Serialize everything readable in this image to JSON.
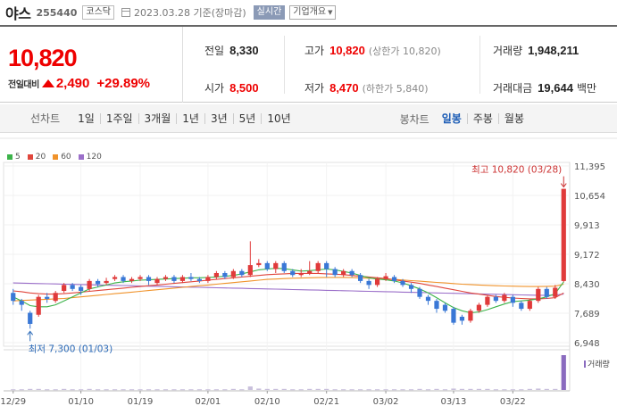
{
  "stock": {
    "name": "야스",
    "code": "255440",
    "market": "코스닥",
    "date_text": "2023.03.28 기준(장마감)",
    "realtime_label": "실시간",
    "info_label": "기업개요"
  },
  "price": {
    "current": "10,820",
    "change_label": "전일대비",
    "change": "2,490",
    "change_pct": "+29.89%"
  },
  "stats": {
    "prev_label": "전일",
    "prev": "8,330",
    "high_label": "고가",
    "high": "10,820",
    "high_note": "(상한가 10,820)",
    "volume_label": "거래량",
    "volume": "1,948,211",
    "open_label": "시가",
    "open": "8,500",
    "low_label": "저가",
    "low": "8,470",
    "low_note": "(하한가 5,840)",
    "amount_label": "거래대금",
    "amount": "19,644",
    "amount_unit": "백만"
  },
  "toolbar": {
    "line_chart_label": "선차트",
    "periods": [
      "1일",
      "1주일",
      "3개월",
      "1년",
      "3년",
      "5년",
      "10년"
    ],
    "candle_label": "봉차트",
    "candle_types": [
      "일봉",
      "주봉",
      "월봉"
    ],
    "active_candle": "일봉"
  },
  "legend": [
    {
      "label": "5",
      "color": "#3cb34a"
    },
    {
      "label": "20",
      "color": "#e0463c"
    },
    {
      "label": "60",
      "color": "#f0932b"
    },
    {
      "label": "120",
      "color": "#9b6fc9"
    }
  ],
  "colors": {
    "up": "#e03a3a",
    "down": "#3a78d6",
    "accent": "#e00"
  },
  "chart_data": {
    "type": "candlestick",
    "ylim": [
      6948,
      11395
    ],
    "yticks": [
      "11,395",
      "10,654",
      "9,913",
      "9,172",
      "8,430",
      "7,689",
      "6,948"
    ],
    "yticks_values": [
      11395,
      10654,
      9913,
      9172,
      8430,
      7689,
      6948
    ],
    "xlabels": [
      "12/29",
      "01/10",
      "01/19",
      "02/01",
      "02/10",
      "02/21",
      "03/02",
      "03/13",
      "03/22"
    ],
    "xlabel_index": [
      0,
      8,
      15,
      23,
      30,
      37,
      44,
      52,
      59
    ],
    "high_annotation": "최고 10,820 (03/28)",
    "low_annotation": "최저 7,300 (01/03)",
    "volume_label": "거래량",
    "candles": [
      [
        8200,
        8000,
        8300,
        7900
      ],
      [
        8000,
        7900,
        8050,
        7750
      ],
      [
        7700,
        7420,
        7750,
        7300
      ],
      [
        7650,
        8100,
        8150,
        7600
      ],
      [
        8100,
        8050,
        8200,
        7950
      ],
      [
        8000,
        8200,
        8250,
        7950
      ],
      [
        8250,
        8400,
        8450,
        8200
      ],
      [
        8400,
        8300,
        8450,
        8250
      ],
      [
        8350,
        8250,
        8400,
        8150
      ],
      [
        8300,
        8500,
        8550,
        8250
      ],
      [
        8500,
        8420,
        8550,
        8350
      ],
      [
        8450,
        8500,
        8580,
        8400
      ],
      [
        8550,
        8600,
        8650,
        8500
      ],
      [
        8600,
        8500,
        8650,
        8450
      ],
      [
        8500,
        8550,
        8600,
        8450
      ],
      [
        8550,
        8600,
        8650,
        8500
      ],
      [
        8600,
        8500,
        8650,
        8400
      ],
      [
        8450,
        8550,
        8600,
        8400
      ],
      [
        8550,
        8600,
        8650,
        8500
      ],
      [
        8600,
        8500,
        8650,
        8450
      ],
      [
        8500,
        8600,
        8650,
        8450
      ],
      [
        8600,
        8550,
        8700,
        8500
      ],
      [
        8550,
        8500,
        8600,
        8450
      ],
      [
        8500,
        8600,
        8650,
        8450
      ],
      [
        8600,
        8700,
        8750,
        8550
      ],
      [
        8700,
        8600,
        8750,
        8550
      ],
      [
        8600,
        8750,
        8800,
        8550
      ],
      [
        8750,
        8650,
        8800,
        8600
      ],
      [
        8650,
        8900,
        9500,
        8600
      ],
      [
        8900,
        8950,
        9050,
        8850
      ],
      [
        8950,
        8800,
        9000,
        8750
      ],
      [
        8800,
        8950,
        9000,
        8700
      ],
      [
        8950,
        8750,
        9000,
        8700
      ],
      [
        8750,
        8650,
        8800,
        8600
      ],
      [
        8650,
        8700,
        8800,
        8600
      ],
      [
        8700,
        8750,
        9000,
        8650
      ],
      [
        8750,
        8950,
        9000,
        8700
      ],
      [
        8950,
        8800,
        9000,
        8600
      ],
      [
        8800,
        8650,
        8850,
        8600
      ],
      [
        8650,
        8750,
        8800,
        8600
      ],
      [
        8750,
        8650,
        8800,
        8600
      ],
      [
        8650,
        8500,
        8700,
        8450
      ],
      [
        8500,
        8400,
        8550,
        8300
      ],
      [
        8400,
        8550,
        8600,
        8350
      ],
      [
        8550,
        8620,
        8700,
        8500
      ],
      [
        8600,
        8500,
        8650,
        8450
      ],
      [
        8500,
        8400,
        8550,
        8350
      ],
      [
        8400,
        8300,
        8450,
        8200
      ],
      [
        8300,
        8100,
        8350,
        8050
      ],
      [
        8100,
        8000,
        8150,
        7900
      ],
      [
        8000,
        7800,
        8050,
        7700
      ],
      [
        7900,
        7750,
        7950,
        7700
      ],
      [
        7800,
        7450,
        7850,
        7400
      ],
      [
        7600,
        7500,
        7650,
        7400
      ],
      [
        7500,
        7750,
        7800,
        7450
      ],
      [
        7750,
        7900,
        7950,
        7700
      ],
      [
        7900,
        8100,
        8150,
        7850
      ],
      [
        8100,
        8000,
        8150,
        7950
      ],
      [
        8000,
        8150,
        8200,
        7950
      ],
      [
        8100,
        7950,
        8150,
        7850
      ],
      [
        7950,
        7800,
        8000,
        7750
      ],
      [
        7800,
        8000,
        8050,
        7750
      ],
      [
        8000,
        8300,
        8350,
        7950
      ],
      [
        8300,
        8100,
        8350,
        8050
      ],
      [
        8100,
        8330,
        8400,
        8050
      ],
      [
        8500,
        10820,
        10820,
        8470
      ]
    ],
    "ma5": [
      8100,
      8000,
      7880,
      7850,
      7850,
      7900,
      8000,
      8100,
      8200,
      8300,
      8350,
      8400,
      8450,
      8480,
      8500,
      8520,
      8530,
      8540,
      8550,
      8560,
      8570,
      8580,
      8580,
      8590,
      8600,
      8620,
      8640,
      8680,
      8730,
      8780,
      8800,
      8820,
      8810,
      8780,
      8750,
      8760,
      8780,
      8800,
      8780,
      8740,
      8700,
      8640,
      8580,
      8550,
      8530,
      8500,
      8450,
      8380,
      8300,
      8200,
      8080,
      7950,
      7830,
      7750,
      7700,
      7720,
      7780,
      7850,
      7920,
      7980,
      8000,
      8020,
      8050,
      8100,
      8180,
      8480
    ],
    "ma20": [
      8250,
      8230,
      8200,
      8180,
      8170,
      8170,
      8180,
      8200,
      8220,
      8240,
      8260,
      8280,
      8300,
      8320,
      8340,
      8360,
      8380,
      8400,
      8420,
      8440,
      8460,
      8480,
      8500,
      8520,
      8540,
      8560,
      8580,
      8600,
      8620,
      8640,
      8660,
      8670,
      8680,
      8690,
      8690,
      8690,
      8690,
      8680,
      8670,
      8660,
      8640,
      8620,
      8600,
      8580,
      8560,
      8530,
      8500,
      8470,
      8440,
      8400,
      8360,
      8320,
      8280,
      8240,
      8200,
      8170,
      8140,
      8110,
      8090,
      8070,
      8060,
      8050,
      8050,
      8060,
      8080,
      8200
    ],
    "ma60": [
      8000,
      8010,
      8020,
      8030,
      8040,
      8050,
      8060,
      8080,
      8100,
      8120,
      8140,
      8160,
      8180,
      8200,
      8220,
      8240,
      8260,
      8280,
      8300,
      8320,
      8340,
      8360,
      8380,
      8400,
      8420,
      8440,
      8460,
      8480,
      8500,
      8520,
      8540,
      8550,
      8560,
      8570,
      8575,
      8580,
      8585,
      8590,
      8590,
      8590,
      8585,
      8580,
      8570,
      8560,
      8550,
      8540,
      8525,
      8510,
      8495,
      8480,
      8465,
      8450,
      8435,
      8420,
      8410,
      8400,
      8390,
      8380,
      8375,
      8370,
      8365,
      8360,
      8360,
      8365,
      8370,
      8420
    ],
    "ma120": [
      8450,
      8445,
      8440,
      8435,
      8430,
      8425,
      8420,
      8415,
      8410,
      8405,
      8400,
      8395,
      8390,
      8385,
      8380,
      8375,
      8370,
      8365,
      8360,
      8355,
      8350,
      8345,
      8340,
      8335,
      8330,
      8325,
      8320,
      8315,
      8310,
      8305,
      8300,
      8295,
      8290,
      8285,
      8280,
      8275,
      8270,
      8265,
      8260,
      8255,
      8250,
      8245,
      8240,
      8235,
      8230,
      8225,
      8220,
      8215,
      8210,
      8205,
      8200,
      8195,
      8190,
      8185,
      8180,
      8175,
      8170,
      8165,
      8160,
      8155,
      8150,
      8145,
      8140,
      8140,
      8145,
      8170
    ],
    "volume": [
      0.02,
      0.02,
      0.03,
      0.03,
      0.02,
      0.02,
      0.03,
      0.02,
      0.02,
      0.03,
      0.02,
      0.02,
      0.02,
      0.02,
      0.02,
      0.02,
      0.02,
      0.02,
      0.02,
      0.02,
      0.02,
      0.02,
      0.02,
      0.02,
      0.02,
      0.02,
      0.03,
      0.02,
      0.1,
      0.04,
      0.03,
      0.03,
      0.03,
      0.02,
      0.02,
      0.03,
      0.03,
      0.03,
      0.02,
      0.02,
      0.02,
      0.02,
      0.02,
      0.02,
      0.02,
      0.02,
      0.02,
      0.02,
      0.03,
      0.02,
      0.03,
      0.02,
      0.04,
      0.03,
      0.03,
      0.03,
      0.03,
      0.02,
      0.02,
      0.02,
      0.02,
      0.03,
      0.04,
      0.03,
      0.03,
      1.0
    ]
  }
}
